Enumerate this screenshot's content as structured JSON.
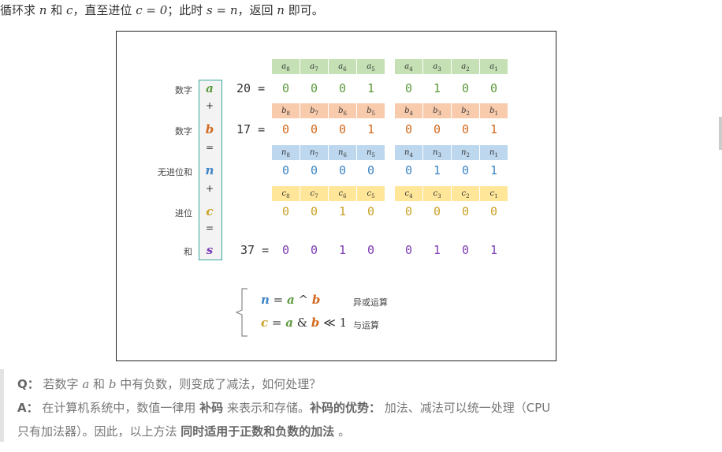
{
  "intro": {
    "p1": "循环求 ",
    "n": "n",
    "p2": " 和 ",
    "c": "c",
    "p3": "，直至进位 ",
    "eq1": "c = 0",
    "p4": "；此时 ",
    "eq2": "s = n",
    "p5": "，返回 ",
    "n2": "n",
    "p6": " 即可。"
  },
  "figure": {
    "rows": [
      {
        "label": "数字",
        "symbol": "a",
        "number": "20 =",
        "header": "a",
        "bits": [
          "0",
          "0",
          "0",
          "1",
          "0",
          "1",
          "0",
          "0"
        ],
        "color": "#5c9a3c",
        "header_bg": "#c5e0b4"
      },
      {
        "label": "数字",
        "symbol": "b",
        "number": "17 =",
        "header": "b",
        "bits": [
          "0",
          "0",
          "0",
          "1",
          "0",
          "0",
          "0",
          "1"
        ],
        "color": "#d2691e",
        "header_bg": "#f8cbad"
      },
      {
        "label": "无进位和",
        "symbol": "n",
        "number": "",
        "header": "n",
        "bits": [
          "0",
          "0",
          "0",
          "0",
          "0",
          "1",
          "0",
          "1"
        ],
        "color": "#3d85c6",
        "header_bg": "#bdd7ee"
      },
      {
        "label": "进位",
        "symbol": "c",
        "number": "",
        "header": "c",
        "bits": [
          "0",
          "0",
          "1",
          "0",
          "0",
          "0",
          "0",
          "0"
        ],
        "color": "#c9a227",
        "header_bg": "#ffe699"
      },
      {
        "label": "和",
        "symbol": "s",
        "number": "37 =",
        "header": "",
        "bits": [
          "0",
          "0",
          "1",
          "0",
          "0",
          "1",
          "0",
          "1"
        ],
        "color": "#7d3cb5",
        "header_bg": ""
      }
    ],
    "subscripts": [
      "8",
      "7",
      "6",
      "5",
      "4",
      "3",
      "2",
      "1"
    ],
    "ops": [
      "+",
      "=",
      "+",
      "="
    ],
    "formulas": [
      {
        "lhs": "n",
        "a": "a",
        "op": " ^ ",
        "b": "b",
        "tail": "",
        "note": "异或运算"
      },
      {
        "lhs": "c",
        "a": "a",
        "op": " & ",
        "b": "b",
        "tail": " ≪ 1",
        "note": "与运算"
      }
    ]
  },
  "qa": {
    "q_label": "Q：",
    "q1": "若数字 ",
    "q_a": "a",
    "q2": " 和 ",
    "q_b": "b",
    "q3": " 中有负数，则变成了减法，如何处理？",
    "a_label": "A：",
    "a1": "在计算机系统中，数值一律用 ",
    "a_b1": "补码",
    "a2": " 来表示和存储。",
    "a_b2": "补码的优势：",
    "a3": " 加法、减法可以统一处理（CPU",
    "a4": "只有加法器）。因此，以上方法 ",
    "a_b3": "同时适用于正数和负数的加法",
    "a5": " 。"
  }
}
